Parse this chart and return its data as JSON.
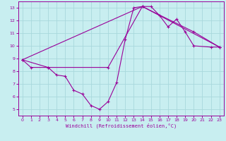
{
  "bg_color": "#c8eef0",
  "grid_color": "#a8d8dc",
  "line_color": "#990099",
  "xlabel": "Windchill (Refroidissement éolien,°C)",
  "xlim": [
    -0.5,
    23.5
  ],
  "ylim": [
    4.5,
    13.5
  ],
  "xticks": [
    0,
    1,
    2,
    3,
    4,
    5,
    6,
    7,
    8,
    9,
    10,
    11,
    12,
    13,
    14,
    15,
    16,
    17,
    18,
    19,
    20,
    21,
    22,
    23
  ],
  "yticks": [
    5,
    6,
    7,
    8,
    9,
    10,
    11,
    12,
    13
  ],
  "line1_x": [
    0,
    1,
    3,
    4,
    5,
    6,
    7,
    8,
    9,
    10,
    11,
    12,
    13,
    14,
    15,
    16,
    17,
    18,
    19,
    20,
    22,
    23
  ],
  "line1_y": [
    8.9,
    8.3,
    8.3,
    7.7,
    7.6,
    6.5,
    6.2,
    5.3,
    5.0,
    5.6,
    7.1,
    10.5,
    13.0,
    13.1,
    13.1,
    12.4,
    11.5,
    12.1,
    11.1,
    10.0,
    9.9,
    9.9
  ],
  "line2_x": [
    0,
    3,
    10,
    14,
    20,
    23
  ],
  "line2_y": [
    8.9,
    8.3,
    8.3,
    13.1,
    11.1,
    9.9
  ],
  "line3_x": [
    0,
    14,
    23
  ],
  "line3_y": [
    8.9,
    13.1,
    9.9
  ]
}
